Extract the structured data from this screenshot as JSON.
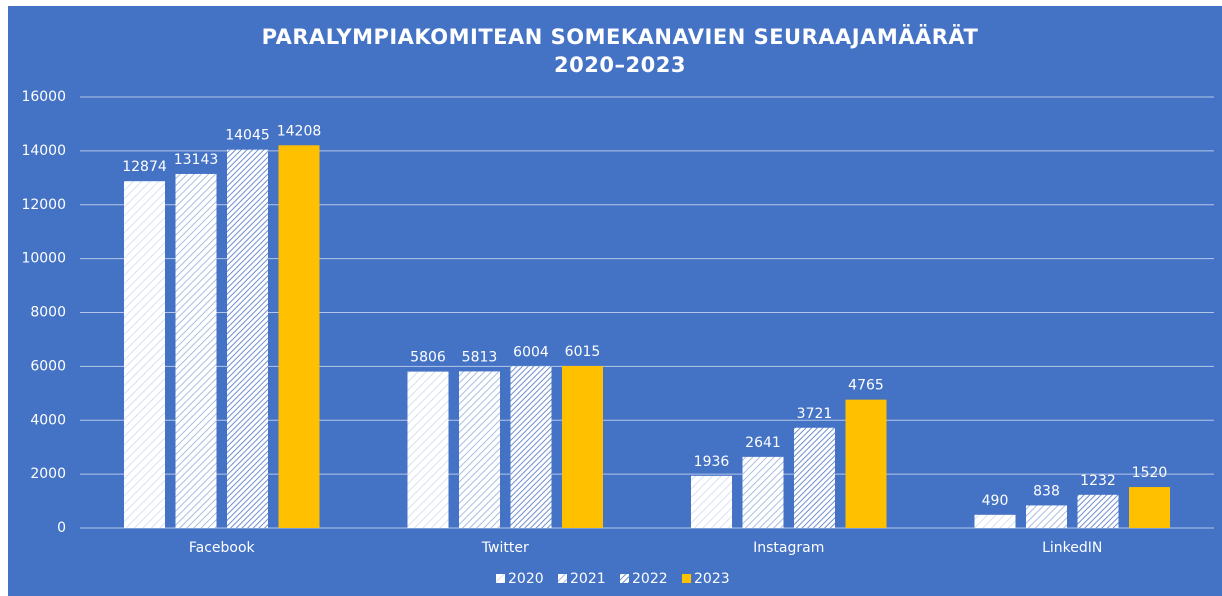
{
  "chart_data": {
    "type": "bar",
    "title": [
      "PARALYMPIAKOMITEAN SOMEKANAVIEN SEURAAJAMÄÄRÄT",
      "2020–2023"
    ],
    "categories": [
      "Facebook",
      "Twitter",
      "Instagram",
      "LinkedIN"
    ],
    "series": [
      {
        "name": "2020",
        "color": "#ffffff",
        "pattern": "light",
        "values": [
          12874,
          5806,
          1936,
          490
        ]
      },
      {
        "name": "2021",
        "color": "#ffffff",
        "pattern": "medium",
        "values": [
          13143,
          5813,
          2641,
          838
        ]
      },
      {
        "name": "2022",
        "color": "#ffffff",
        "pattern": "dense",
        "values": [
          14045,
          6004,
          3721,
          1232
        ]
      },
      {
        "name": "2023",
        "color": "#ffc000",
        "values": [
          14208,
          6015,
          4765,
          1520
        ]
      }
    ],
    "ylim": [
      0,
      16000
    ],
    "yticks": [
      0,
      2000,
      4000,
      6000,
      8000,
      10000,
      12000,
      14000,
      16000
    ],
    "grid": true,
    "legend": "bottom"
  }
}
